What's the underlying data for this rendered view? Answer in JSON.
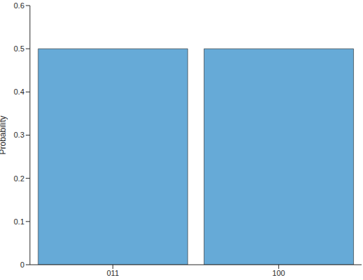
{
  "chart_data": {
    "type": "bar",
    "categories": [
      "011",
      "100"
    ],
    "values": [
      0.5,
      0.5
    ],
    "color": "#66aad7",
    "y_label": "Probability",
    "ylim": [
      0,
      0.6
    ],
    "yticks": [
      0,
      0.1,
      0.2,
      0.3,
      0.4,
      0.5,
      0.6
    ],
    "grid": false
  }
}
